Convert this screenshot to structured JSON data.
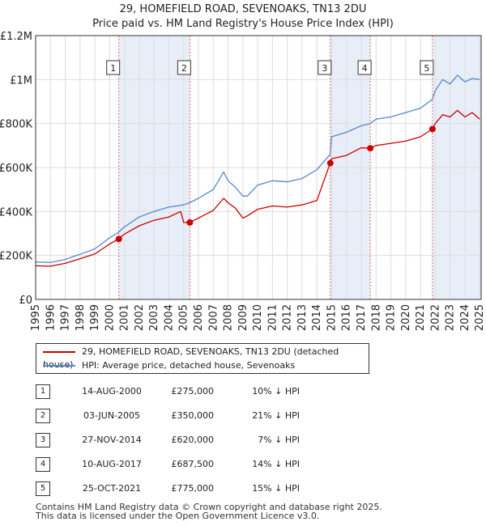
{
  "title_line1": "29, HOMEFIELD ROAD, SEVENOAKS, TN13 2DU",
  "title_line2": "Price paid vs. HM Land Registry's House Price Index (HPI)",
  "colors": {
    "price": "#cc0000",
    "hpi": "#5588cc",
    "shade": "#e8eef8",
    "vline": "#dd6677",
    "grid": "#dddddd"
  },
  "chart_data": {
    "type": "line",
    "title": "29, HOMEFIELD ROAD, SEVENOAKS, TN13 2DU",
    "subtitle": "Price paid vs. HM Land Registry's House Price Index (HPI)",
    "xlabel": "",
    "ylabel": "",
    "xlim": [
      1995,
      2025.1
    ],
    "ylim": [
      0,
      1200000
    ],
    "y_ticks": [
      0,
      200000,
      400000,
      600000,
      800000,
      1000000,
      1200000
    ],
    "y_tick_labels": [
      "£0",
      "£200K",
      "£400K",
      "£600K",
      "£800K",
      "£1M",
      "£1.2M"
    ],
    "x_ticks": [
      "1995",
      "1996",
      "1997",
      "1998",
      "1999",
      "2000",
      "2001",
      "2002",
      "2003",
      "2004",
      "2005",
      "2006",
      "2007",
      "2008",
      "2009",
      "2010",
      "2011",
      "2012",
      "2013",
      "2014",
      "2015",
      "2016",
      "2017",
      "2018",
      "2019",
      "2020",
      "2021",
      "2022",
      "2023",
      "2024",
      "2025"
    ],
    "grid": true,
    "series": [
      {
        "name": "HPI: Average price, detached house, Sevenoaks",
        "x": [
          1995,
          1996,
          1997,
          1998,
          1999,
          2000,
          2000.6,
          2001,
          2002,
          2003,
          2004,
          2005,
          2005.4,
          2006,
          2007,
          2007.7,
          2008,
          2008.5,
          2009,
          2009.3,
          2010,
          2011,
          2012,
          2013,
          2014,
          2014.9,
          2015,
          2016,
          2017,
          2017.6,
          2018,
          2019,
          2020,
          2021,
          2021.8,
          2022,
          2022.5,
          2023,
          2023.5,
          2024,
          2024.5,
          2025
        ],
        "values": [
          170000,
          168000,
          182000,
          205000,
          230000,
          280000,
          305000,
          330000,
          375000,
          400000,
          420000,
          430000,
          440000,
          460000,
          500000,
          580000,
          540000,
          510000,
          470000,
          470000,
          520000,
          540000,
          535000,
          550000,
          590000,
          660000,
          740000,
          760000,
          790000,
          800000,
          820000,
          830000,
          850000,
          870000,
          910000,
          950000,
          1000000,
          980000,
          1020000,
          990000,
          1005000,
          1000000
        ]
      },
      {
        "name": "29, HOMEFIELD ROAD, SEVENOAKS, TN13 2DU (detached house)",
        "x": [
          1995,
          1996,
          1997,
          1998,
          1999,
          2000,
          2000.6,
          2001,
          2002,
          2003,
          2004,
          2004.8,
          2005,
          2005.4,
          2006,
          2007,
          2007.7,
          2008,
          2008.5,
          2009,
          2009.3,
          2010,
          2011,
          2012,
          2013,
          2014,
          2014.9,
          2015,
          2016,
          2017,
          2017.6,
          2018,
          2019,
          2020,
          2021,
          2021.8,
          2022,
          2022.5,
          2023,
          2023.5,
          2024,
          2024.5,
          2025
        ],
        "values": [
          153000,
          151000,
          164000,
          185000,
          207000,
          252000,
          275000,
          297000,
          335000,
          360000,
          375000,
          400000,
          350000,
          350000,
          370000,
          405000,
          460000,
          440000,
          415000,
          370000,
          380000,
          410000,
          425000,
          420000,
          430000,
          450000,
          620000,
          640000,
          655000,
          690000,
          687500,
          700000,
          710000,
          720000,
          740000,
          775000,
          800000,
          840000,
          830000,
          860000,
          830000,
          850000,
          820000
        ]
      }
    ],
    "sales": [
      {
        "label": "1",
        "x": 2000.62,
        "value": 275000
      },
      {
        "label": "2",
        "x": 2005.42,
        "value": 350000
      },
      {
        "label": "3",
        "x": 2014.91,
        "value": 620000
      },
      {
        "label": "4",
        "x": 2017.61,
        "value": 687500
      },
      {
        "label": "5",
        "x": 2021.81,
        "value": 775000
      }
    ],
    "shaded_ranges": [
      [
        2000.62,
        2005.42
      ],
      [
        2014.91,
        2017.61
      ],
      [
        2021.81,
        2025.1
      ]
    ]
  },
  "legend": {
    "price_label": "29, HOMEFIELD ROAD, SEVENOAKS, TN13 2DU (detached house)",
    "hpi_label": "HPI: Average price, detached house, Sevenoaks"
  },
  "sales_table": [
    {
      "num": "1",
      "date": "14-AUG-2000",
      "price": "£275,000",
      "hpi": "10% ↓ HPI"
    },
    {
      "num": "2",
      "date": "03-JUN-2005",
      "price": "£350,000",
      "hpi": "21% ↓ HPI"
    },
    {
      "num": "3",
      "date": "27-NOV-2014",
      "price": "£620,000",
      "hpi": "7% ↓ HPI"
    },
    {
      "num": "4",
      "date": "10-AUG-2017",
      "price": "£687,500",
      "hpi": "14% ↓ HPI"
    },
    {
      "num": "5",
      "date": "25-OCT-2021",
      "price": "£775,000",
      "hpi": "15% ↓ HPI"
    }
  ],
  "footer_line1": "Contains HM Land Registry data © Crown copyright and database right 2025.",
  "footer_line2": "This data is licensed under the Open Government Licence v3.0."
}
